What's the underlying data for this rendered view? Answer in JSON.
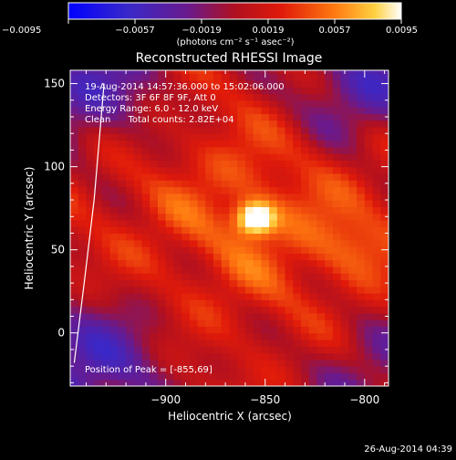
{
  "chart_data": {
    "type": "heatmap",
    "title": "Reconstructed RHESSI Image",
    "xlabel": "Heliocentric X (arcsec)",
    "ylabel": "Heliocentric Y (arcsec)",
    "xlim": [
      -948,
      -788
    ],
    "ylim": [
      -32,
      158
    ],
    "xticks": [
      -900,
      -850,
      -800
    ],
    "xtick_labels": [
      "−900",
      "−850",
      "−800"
    ],
    "yticks": [
      0,
      50,
      100,
      150
    ],
    "ytick_labels": [
      "0",
      "50",
      "100",
      "150"
    ],
    "colorbar": {
      "range": [
        -0.0095,
        0.0095
      ],
      "tick_values": [
        -0.0095,
        -0.0057,
        -0.0019,
        0.0019,
        0.0057,
        0.0095
      ],
      "tick_labels": [
        "−0.0095",
        "−0.0057",
        "−0.0019",
        "0.0019",
        "0.0057",
        "0.0095"
      ],
      "unit_label": "(photons cm⁻² s⁻¹ asec⁻²)",
      "colormap": "black-blue-purple-red-orange-yellow-white"
    },
    "annotations": [
      "19-Aug-2014 14:57:36.000 to 15:02:06.000",
      "Detectors: 3F 6F 8F 9F, Att 0",
      "Energy Range: 6.0 - 12.0 keV",
      "Clean      Total counts: 2.82E+04"
    ],
    "peak": {
      "label": "Position of Peak = [-855,69]",
      "x": -855,
      "y": 69
    },
    "sources": [
      {
        "x": -855,
        "y": 69,
        "value": 0.0095,
        "kind": "peak"
      },
      {
        "x": -805,
        "y": 52,
        "value": 0.0045,
        "kind": "secondary"
      }
    ],
    "limb_line": [
      [
        -946,
        -18
      ],
      [
        -941,
        30
      ],
      [
        -936,
        80
      ],
      [
        -931,
        150
      ]
    ]
  },
  "footer": {
    "date": "26-Aug-2014 04:39"
  }
}
